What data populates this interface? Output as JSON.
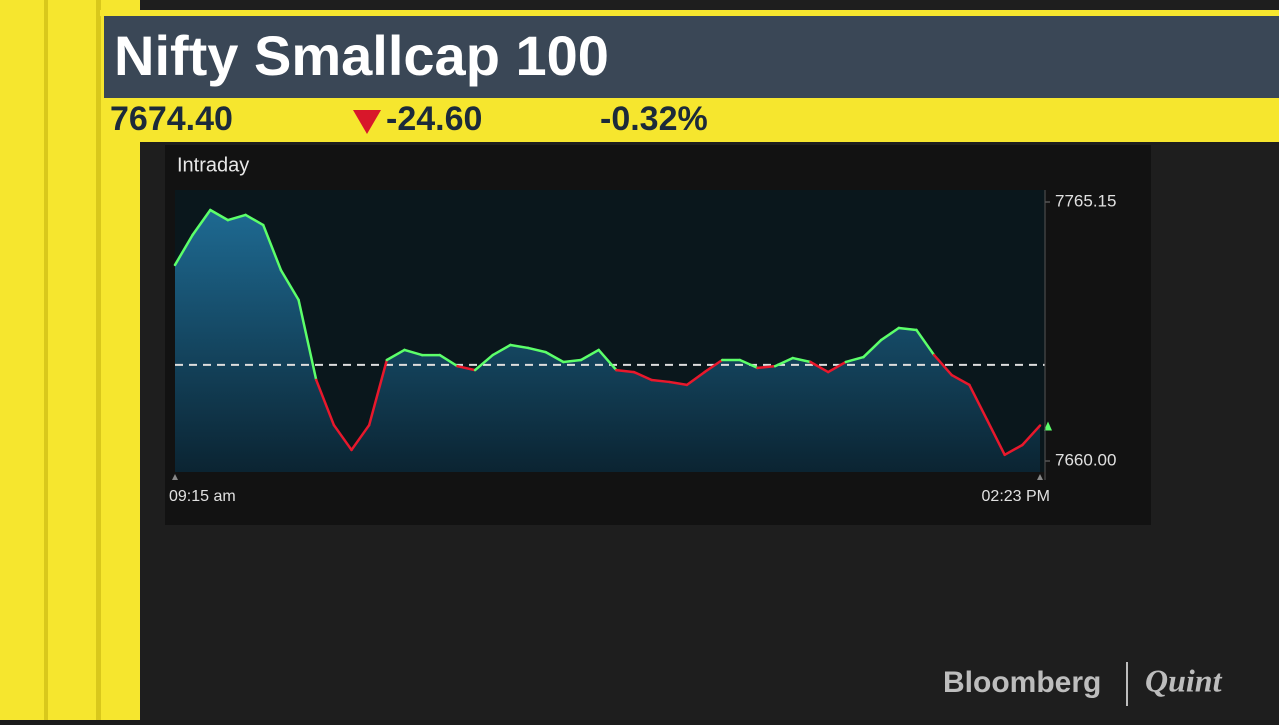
{
  "header": {
    "title": "Nifty Smallcap 100",
    "price": "7674.40",
    "change": "-24.60",
    "change_pct": "-0.32%"
  },
  "brand": {
    "left": "Bloomberg",
    "right": "Quint"
  },
  "chart_data": {
    "type": "line",
    "title": "Intraday",
    "categories": [
      "09:15 am",
      null,
      null,
      null,
      null,
      null,
      null,
      null,
      null,
      null,
      null,
      null,
      null,
      null,
      null,
      null,
      null,
      null,
      null,
      null,
      null,
      null,
      null,
      null,
      null,
      null,
      null,
      null,
      null,
      null,
      null,
      null,
      null,
      null,
      null,
      null,
      null,
      null,
      null,
      null,
      null,
      null,
      null,
      null,
      null,
      null,
      null,
      null,
      null,
      "02:23 PM"
    ],
    "values": [
      7739.6,
      7751.8,
      7761.9,
      7757.8,
      7759.9,
      7755.8,
      7737.5,
      7725.4,
      7692.9,
      7674.6,
      7664.5,
      7674.6,
      7701.0,
      7705.1,
      7703.0,
      7703.0,
      7698.5,
      7696.9,
      7703.0,
      7707.1,
      7705.9,
      7704.2,
      7700.2,
      7701.0,
      7705.1,
      7696.9,
      7696.1,
      7692.9,
      7692.1,
      7690.9,
      7696.1,
      7701.0,
      7701.0,
      7697.8,
      7698.5,
      7701.8,
      7700.2,
      7696.1,
      7700.2,
      7702.2,
      7709.1,
      7714.0,
      7713.2,
      7703.0,
      7694.9,
      7690.9,
      7676.7,
      7662.5,
      7666.5,
      7674.4
    ],
    "reference_line": 7699.0,
    "ylim": [
      7660,
      7765.15
    ],
    "yticks": [
      {
        "value": 7660,
        "label": "7660.00"
      },
      7765.15
    ],
    "up_color": "#5cff6a",
    "down_color": "#e8182c"
  }
}
